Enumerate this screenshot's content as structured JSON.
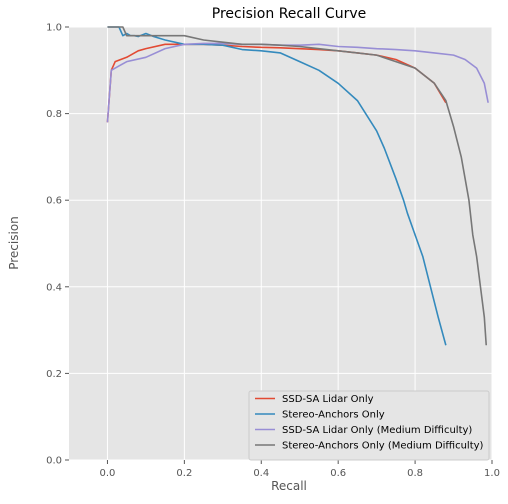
{
  "chart_data": {
    "type": "line",
    "title": "Precision Recall Curve",
    "xlabel": "Recall",
    "ylabel": "Precision",
    "xlim": [
      -0.1,
      1.0
    ],
    "ylim": [
      0.0,
      1.0
    ],
    "xticks": [
      "0.0",
      "0.2",
      "0.4",
      "0.6",
      "0.8",
      "1.0"
    ],
    "xtick_values": [
      0.0,
      0.2,
      0.4,
      0.6,
      0.8,
      1.0
    ],
    "yticks": [
      "0.0",
      "0.2",
      "0.4",
      "0.6",
      "0.8",
      "1.0"
    ],
    "ytick_values": [
      0.0,
      0.2,
      0.4,
      0.6,
      0.8,
      1.0
    ],
    "grid": true,
    "legend_position": "bottom-right",
    "style": "ggplot",
    "background": "#e5e5e5",
    "series": [
      {
        "name": "SSD-SA Lidar Only",
        "color": "#e24a33",
        "x": [
          0.0,
          0.01,
          0.02,
          0.05,
          0.08,
          0.1,
          0.15,
          0.2,
          0.25,
          0.3,
          0.35,
          0.4,
          0.45,
          0.5,
          0.55,
          0.6,
          0.65,
          0.7,
          0.75,
          0.8,
          0.85,
          0.88
        ],
        "y": [
          0.78,
          0.9,
          0.92,
          0.93,
          0.945,
          0.95,
          0.96,
          0.96,
          0.96,
          0.958,
          0.955,
          0.953,
          0.952,
          0.95,
          0.948,
          0.945,
          0.94,
          0.935,
          0.925,
          0.905,
          0.87,
          0.825
        ]
      },
      {
        "name": "Stereo-Anchors Only",
        "color": "#348abd",
        "x": [
          0.0,
          0.01,
          0.02,
          0.03,
          0.04,
          0.05,
          0.06,
          0.07,
          0.08,
          0.1,
          0.12,
          0.15,
          0.2,
          0.25,
          0.3,
          0.35,
          0.4,
          0.45,
          0.5,
          0.55,
          0.6,
          0.65,
          0.7,
          0.72,
          0.75,
          0.77,
          0.78,
          0.8,
          0.82,
          0.84,
          0.86,
          0.88
        ],
        "y": [
          1.0,
          1.0,
          1.0,
          1.0,
          0.98,
          0.985,
          0.98,
          0.98,
          0.978,
          0.985,
          0.978,
          0.97,
          0.96,
          0.96,
          0.958,
          0.948,
          0.945,
          0.94,
          0.92,
          0.9,
          0.87,
          0.83,
          0.76,
          0.72,
          0.65,
          0.6,
          0.57,
          0.52,
          0.47,
          0.4,
          0.33,
          0.265
        ]
      },
      {
        "name": "SSD-SA Lidar Only (Medium Difficulty)",
        "color": "#988ed5",
        "x": [
          0.0,
          0.01,
          0.03,
          0.05,
          0.1,
          0.15,
          0.2,
          0.25,
          0.3,
          0.35,
          0.4,
          0.45,
          0.5,
          0.55,
          0.6,
          0.65,
          0.7,
          0.75,
          0.8,
          0.85,
          0.9,
          0.93,
          0.96,
          0.98,
          0.99
        ],
        "y": [
          0.78,
          0.9,
          0.91,
          0.92,
          0.93,
          0.95,
          0.96,
          0.962,
          0.962,
          0.96,
          0.96,
          0.958,
          0.958,
          0.96,
          0.955,
          0.953,
          0.95,
          0.948,
          0.945,
          0.94,
          0.935,
          0.925,
          0.905,
          0.87,
          0.825
        ]
      },
      {
        "name": "Stereo-Anchors Only (Medium Difficulty)",
        "color": "#777777",
        "x": [
          0.0,
          0.02,
          0.04,
          0.05,
          0.08,
          0.1,
          0.15,
          0.2,
          0.25,
          0.3,
          0.35,
          0.4,
          0.45,
          0.5,
          0.55,
          0.6,
          0.65,
          0.7,
          0.75,
          0.8,
          0.85,
          0.88,
          0.9,
          0.92,
          0.94,
          0.95,
          0.96,
          0.97,
          0.98,
          0.985
        ],
        "y": [
          1.0,
          1.0,
          1.0,
          0.98,
          0.98,
          0.98,
          0.98,
          0.98,
          0.97,
          0.965,
          0.96,
          0.96,
          0.958,
          0.955,
          0.95,
          0.945,
          0.94,
          0.935,
          0.92,
          0.905,
          0.87,
          0.83,
          0.77,
          0.7,
          0.6,
          0.52,
          0.47,
          0.4,
          0.33,
          0.265
        ]
      }
    ]
  }
}
